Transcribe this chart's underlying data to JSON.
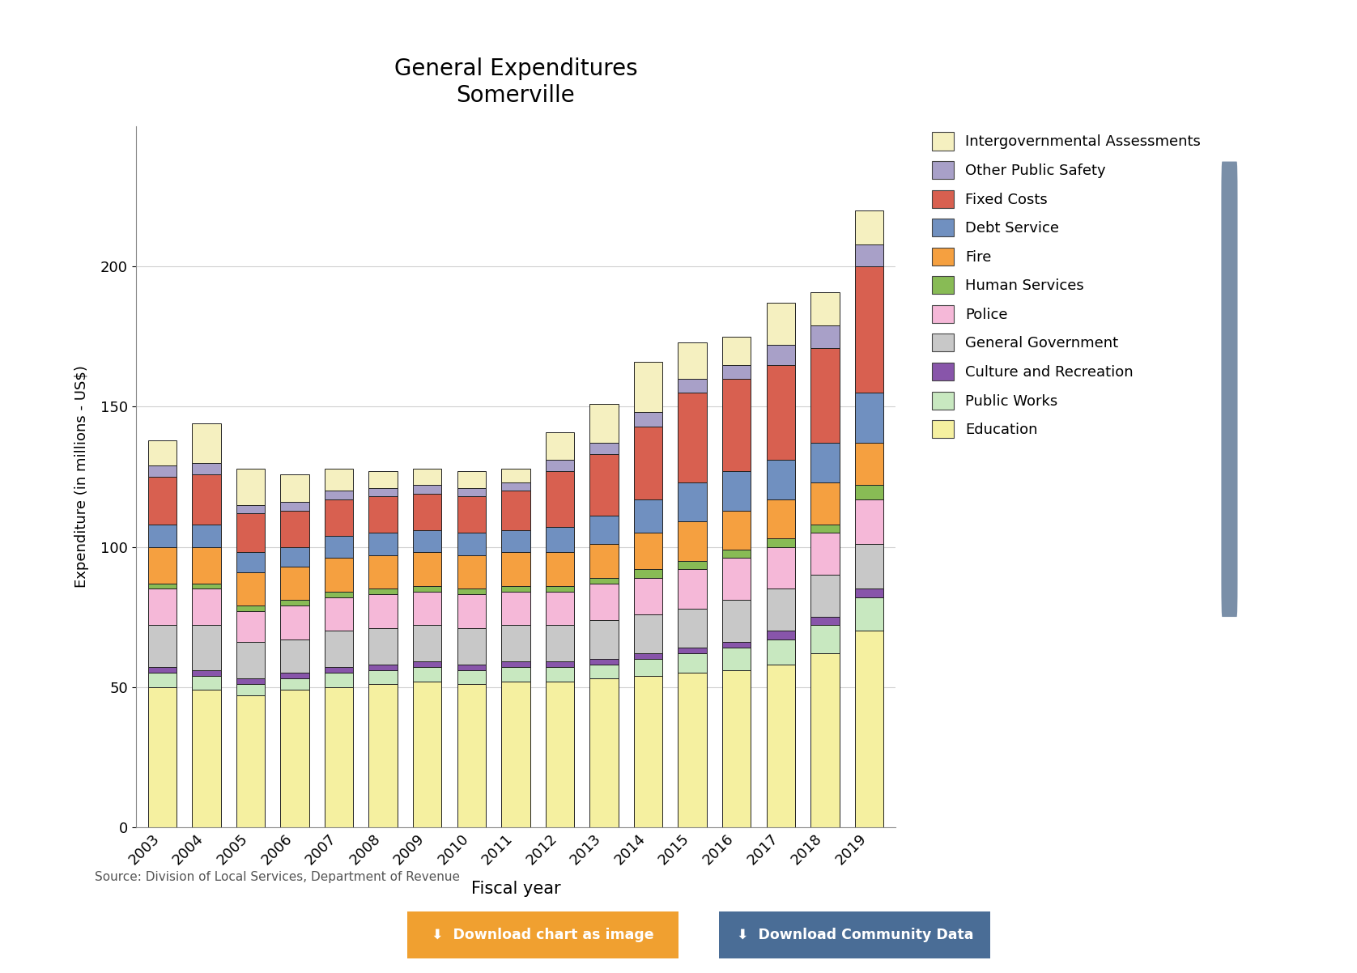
{
  "title": "General Expenditures\nSomerville",
  "xlabel": "Fiscal year",
  "ylabel": "Expenditure (in millions - US$)",
  "source": "Source: Division of Local Services, Department of Revenue",
  "years": [
    "2003",
    "2004",
    "2005",
    "2006",
    "2007",
    "2008",
    "2009",
    "2010",
    "2011",
    "2012",
    "2013",
    "2014",
    "2015",
    "2016",
    "2017",
    "2018",
    "2019"
  ],
  "categories": [
    "Education",
    "Public Works",
    "Culture and Recreation",
    "General Government",
    "Police",
    "Human Services",
    "Fire",
    "Debt Service",
    "Fixed Costs",
    "Other Public Safety",
    "Intergovernmental Assessments"
  ],
  "colors": [
    "#f5f0a0",
    "#c8e8c0",
    "#8855aa",
    "#c8c8c8",
    "#f5b8d8",
    "#88bb55",
    "#f5a040",
    "#7090c0",
    "#d86050",
    "#a8a0c8",
    "#f5f0c0"
  ],
  "data": {
    "Education": [
      50,
      49,
      47,
      49,
      50,
      51,
      52,
      51,
      52,
      52,
      53,
      54,
      55,
      56,
      58,
      62,
      70
    ],
    "Public Works": [
      5,
      5,
      4,
      4,
      5,
      5,
      5,
      5,
      5,
      5,
      5,
      6,
      7,
      8,
      9,
      10,
      12
    ],
    "Culture and Recreation": [
      2,
      2,
      2,
      2,
      2,
      2,
      2,
      2,
      2,
      2,
      2,
      2,
      2,
      2,
      3,
      3,
      3
    ],
    "General Government": [
      15,
      16,
      13,
      12,
      13,
      13,
      13,
      13,
      13,
      13,
      14,
      14,
      14,
      15,
      15,
      15,
      16
    ],
    "Police": [
      13,
      13,
      11,
      12,
      12,
      12,
      12,
      12,
      12,
      12,
      13,
      13,
      14,
      15,
      15,
      15,
      16
    ],
    "Human Services": [
      2,
      2,
      2,
      2,
      2,
      2,
      2,
      2,
      2,
      2,
      2,
      3,
      3,
      3,
      3,
      3,
      5
    ],
    "Fire": [
      13,
      13,
      12,
      12,
      12,
      12,
      12,
      12,
      12,
      12,
      12,
      13,
      14,
      14,
      14,
      15,
      15
    ],
    "Debt Service": [
      8,
      8,
      7,
      7,
      8,
      8,
      8,
      8,
      8,
      9,
      10,
      12,
      14,
      14,
      14,
      14,
      18
    ],
    "Fixed Costs": [
      17,
      18,
      14,
      13,
      13,
      13,
      13,
      13,
      14,
      20,
      22,
      26,
      32,
      33,
      34,
      34,
      45
    ],
    "Other Public Safety": [
      4,
      4,
      3,
      3,
      3,
      3,
      3,
      3,
      3,
      4,
      4,
      5,
      5,
      5,
      7,
      8,
      8
    ],
    "Intergovernmental Assessments": [
      9,
      14,
      13,
      10,
      8,
      6,
      6,
      6,
      5,
      10,
      14,
      18,
      13,
      10,
      15,
      12,
      12
    ]
  },
  "background_color": "#ffffff",
  "ylim": [
    0,
    250
  ],
  "yticks": [
    0,
    50,
    100,
    150,
    200
  ],
  "legend_labels": [
    "Intergovernmental Assessments",
    "Other Public Safety",
    "Fixed Costs",
    "Debt Service",
    "Fire",
    "Human Services",
    "Police",
    "General Government",
    "Culture and Recreation",
    "Public Works",
    "Education"
  ],
  "legend_colors": [
    "#f5f0c0",
    "#a8a0c8",
    "#d86050",
    "#7090c0",
    "#f5a040",
    "#88bb55",
    "#f5b8d8",
    "#c8c8c8",
    "#8855aa",
    "#c8e8c0",
    "#f5f0a0"
  ]
}
